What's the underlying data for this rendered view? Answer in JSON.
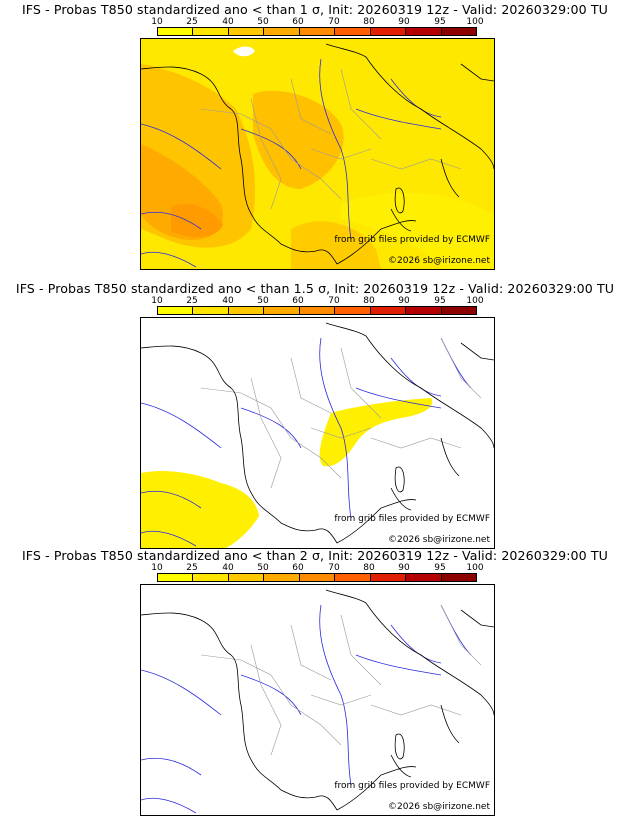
{
  "colorbar": {
    "ticks": [
      "10",
      "25",
      "40",
      "50",
      "60",
      "70",
      "80",
      "90",
      "95",
      "100"
    ],
    "colors": [
      "#ffff00",
      "#ffe500",
      "#ffc800",
      "#ffaa00",
      "#ff8c00",
      "#ff5f00",
      "#e11e00",
      "#b40000",
      "#8c0000",
      "#5a0000"
    ]
  },
  "panels": [
    {
      "title": "IFS - Probas T850  standardized ano < than 1 σ, Init: 20260319 12z - Valid: 20260329:00 TU",
      "provider_note": "from grib files provided by ECMWF",
      "copyright": "©2026 sb@irizone.net"
    },
    {
      "title": "IFS - Probas T850  standardized ano < than 1.5 σ, Init: 20260319 12z - Valid: 20260329:00 TU",
      "provider_note": "from grib files provided by ECMWF",
      "copyright": "©2026 sb@irizone.net"
    },
    {
      "title": "IFS - Probas T850  standardized ano < than 2 σ, Init: 20260319 12z - Valid: 20260329:00 TU",
      "provider_note": "from grib files provided by ECMWF",
      "copyright": "©2026 sb@irizone.net"
    }
  ]
}
